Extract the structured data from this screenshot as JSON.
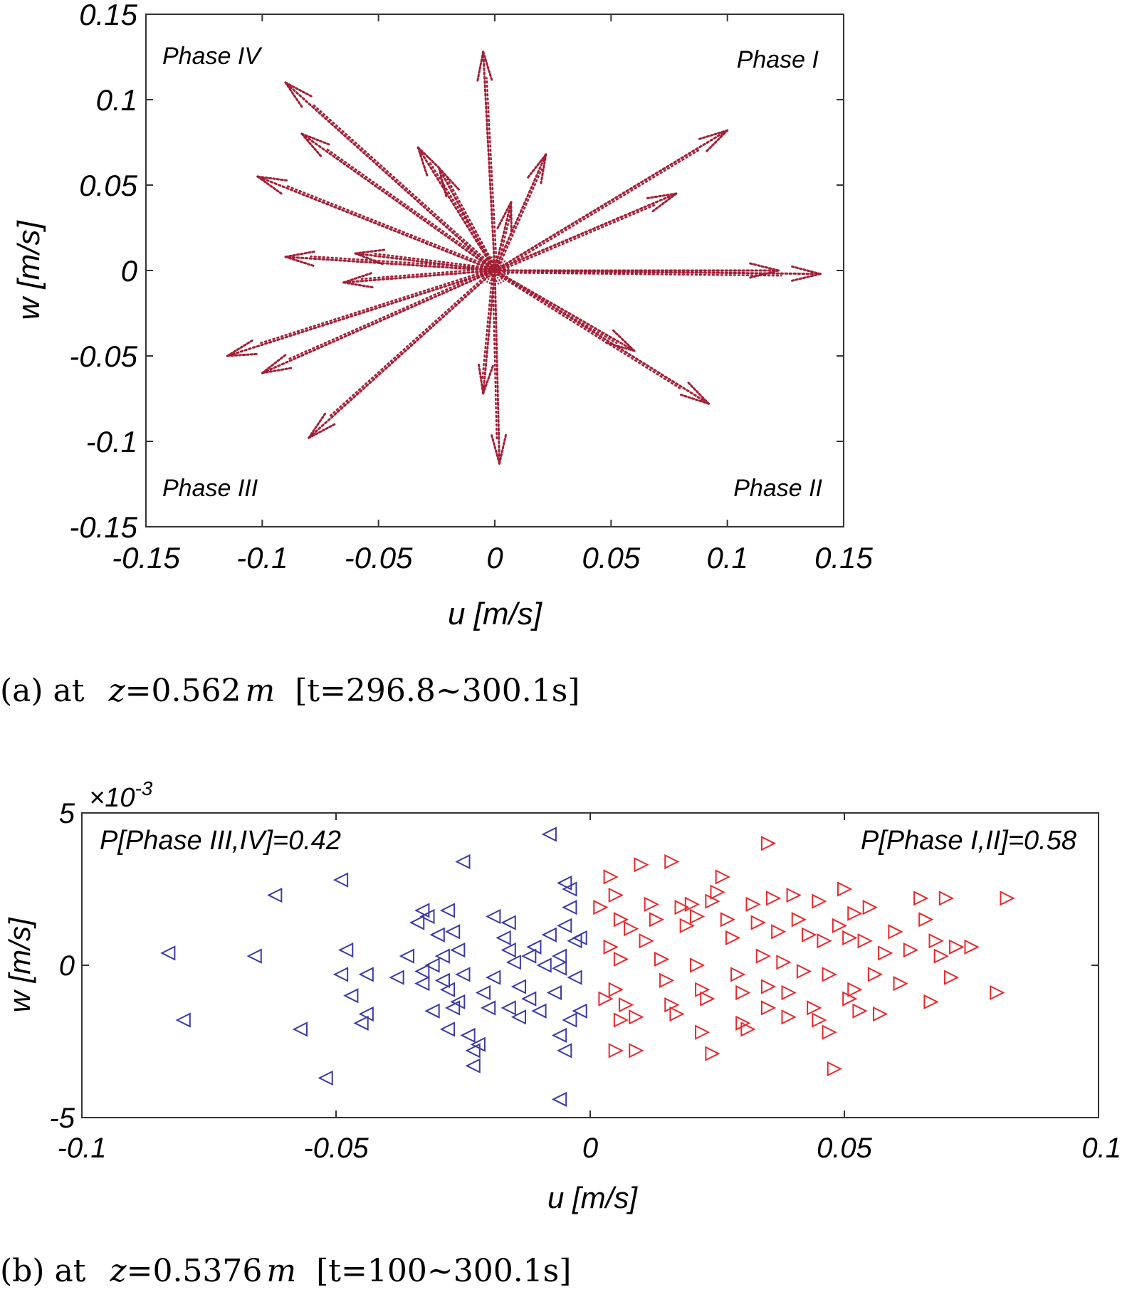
{
  "chart_data": [
    {
      "type": "scatter",
      "panel": "a",
      "title": "",
      "xlabel": "u [m/s]",
      "ylabel": "w [m/s]",
      "xlim": [
        -0.15,
        0.15
      ],
      "ylim": [
        -0.15,
        0.15
      ],
      "xticks": [
        -0.15,
        -0.1,
        -0.05,
        0,
        0.05,
        0.1,
        0.15
      ],
      "yticks": [
        -0.15,
        -0.1,
        -0.05,
        0,
        0.05,
        0.1,
        0.15
      ],
      "xtick_labels": [
        "-0.15",
        "-0.1",
        "-0.05",
        "0",
        "0.05",
        "0.1",
        "0.15"
      ],
      "ytick_labels": [
        "-0.15",
        "-0.1",
        "-0.05",
        "0",
        "0.05",
        "0.1",
        "0.15"
      ],
      "color": "#a31e35",
      "series_description": "dotted velocity trajectories radiating from the origin",
      "ray_endpoints": [
        [
          -0.005,
          0.128
        ],
        [
          0.022,
          0.068
        ],
        [
          0.007,
          0.04
        ],
        [
          0.1,
          0.082
        ],
        [
          0.078,
          0.045
        ],
        [
          0.14,
          -0.002
        ],
        [
          0.122,
          0.0
        ],
        [
          0.092,
          -0.078
        ],
        [
          0.06,
          -0.047
        ],
        [
          0.002,
          -0.113
        ],
        [
          -0.005,
          -0.072
        ],
        [
          -0.08,
          -0.098
        ],
        [
          -0.1,
          -0.06
        ],
        [
          -0.115,
          -0.05
        ],
        [
          -0.09,
          0.11
        ],
        [
          -0.083,
          0.08
        ],
        [
          -0.102,
          0.055
        ],
        [
          -0.09,
          0.008
        ],
        [
          -0.06,
          0.01
        ],
        [
          -0.065,
          -0.007
        ],
        [
          -0.033,
          0.072
        ],
        [
          -0.024,
          0.06
        ]
      ],
      "annotations": {
        "top_left": "Phase IV",
        "top_right": "Phase I",
        "bottom_left": "Phase III",
        "bottom_right": "Phase II"
      }
    },
    {
      "type": "scatter",
      "panel": "b",
      "title": "",
      "xlabel": "u [m/s]",
      "ylabel": "w [m/s]",
      "xlim": [
        -0.1,
        0.1
      ],
      "ylim": [
        -5,
        5
      ],
      "y_scale_label": "×10",
      "y_scale_exponent": "-3",
      "xticks": [
        -0.1,
        -0.05,
        0,
        0.05,
        0.1
      ],
      "yticks": [
        -5,
        0,
        5
      ],
      "xtick_labels": [
        "-0.1",
        "-0.05",
        "0",
        "0.05",
        "0.1"
      ],
      "ytick_labels": [
        "-5",
        "0",
        "5"
      ],
      "series": [
        {
          "name": "Phase III,IV",
          "marker": "triangle-left",
          "color": "#3a3aa8",
          "points": [
            [
              -0.083,
              0.4
            ],
            [
              -0.08,
              -1.8
            ],
            [
              -0.066,
              0.3
            ],
            [
              -0.062,
              2.3
            ],
            [
              -0.057,
              -2.1
            ],
            [
              -0.052,
              -3.7
            ],
            [
              -0.049,
              2.8
            ],
            [
              -0.048,
              0.5
            ],
            [
              -0.049,
              -0.3
            ],
            [
              -0.047,
              -1.0
            ],
            [
              -0.044,
              -0.3
            ],
            [
              -0.044,
              -1.6
            ],
            [
              -0.045,
              -1.9
            ],
            [
              -0.038,
              -0.4
            ],
            [
              -0.036,
              0.3
            ],
            [
              -0.034,
              1.4
            ],
            [
              -0.033,
              1.8
            ],
            [
              -0.032,
              1.6
            ],
            [
              -0.031,
              0.0
            ],
            [
              -0.033,
              -0.2
            ],
            [
              -0.033,
              -0.6
            ],
            [
              -0.031,
              -1.5
            ],
            [
              -0.03,
              1.0
            ],
            [
              -0.029,
              0.3
            ],
            [
              -0.029,
              -0.5
            ],
            [
              -0.028,
              -0.8
            ],
            [
              -0.027,
              -1.4
            ],
            [
              -0.026,
              -1.2
            ],
            [
              -0.028,
              -2.1
            ],
            [
              -0.028,
              1.8
            ],
            [
              -0.027,
              1.1
            ],
            [
              -0.026,
              0.5
            ],
            [
              -0.025,
              -0.3
            ],
            [
              -0.025,
              3.4
            ],
            [
              -0.024,
              -2.3
            ],
            [
              -0.023,
              -2.8
            ],
            [
              -0.023,
              -3.3
            ],
            [
              -0.022,
              -2.6
            ],
            [
              -0.021,
              -0.9
            ],
            [
              -0.02,
              -1.4
            ],
            [
              -0.019,
              -0.4
            ],
            [
              -0.019,
              1.6
            ],
            [
              -0.017,
              0.9
            ],
            [
              -0.016,
              1.4
            ],
            [
              -0.016,
              0.5
            ],
            [
              -0.015,
              0.1
            ],
            [
              -0.016,
              -1.4
            ],
            [
              -0.014,
              -1.7
            ],
            [
              -0.014,
              -0.7
            ],
            [
              -0.012,
              0.3
            ],
            [
              -0.012,
              -1.1
            ],
            [
              -0.011,
              0.6
            ],
            [
              -0.01,
              -1.5
            ],
            [
              -0.009,
              0.0
            ],
            [
              -0.008,
              1.0
            ],
            [
              -0.007,
              -0.9
            ],
            [
              -0.006,
              0.3
            ],
            [
              -0.006,
              -2.3
            ],
            [
              -0.005,
              1.3
            ],
            [
              -0.005,
              -2.8
            ],
            [
              -0.004,
              2.5
            ],
            [
              -0.004,
              1.9
            ],
            [
              -0.003,
              0.8
            ],
            [
              -0.003,
              -0.4
            ],
            [
              -0.004,
              -1.8
            ],
            [
              -0.002,
              -1.5
            ],
            [
              -0.002,
              0.9
            ],
            [
              -0.006,
              -4.4
            ],
            [
              -0.008,
              4.3
            ],
            [
              -0.005,
              2.7
            ],
            [
              -0.006,
              -0.1
            ]
          ]
        },
        {
          "name": "Phase I,II",
          "marker": "triangle-right",
          "color": "#e8292c",
          "points": [
            [
              0.004,
              2.9
            ],
            [
              0.005,
              2.3
            ],
            [
              0.006,
              1.5
            ],
            [
              0.008,
              1.2
            ],
            [
              0.004,
              0.6
            ],
            [
              0.006,
              0.2
            ],
            [
              0.005,
              -0.8
            ],
            [
              0.007,
              -1.3
            ],
            [
              0.006,
              -1.8
            ],
            [
              0.005,
              -2.8
            ],
            [
              0.009,
              -2.8
            ],
            [
              0.01,
              3.3
            ],
            [
              0.012,
              2.0
            ],
            [
              0.013,
              1.5
            ],
            [
              0.014,
              0.2
            ],
            [
              0.015,
              -0.5
            ],
            [
              0.016,
              -1.3
            ],
            [
              0.017,
              -1.6
            ],
            [
              0.018,
              1.9
            ],
            [
              0.019,
              1.3
            ],
            [
              0.02,
              2.0
            ],
            [
              0.021,
              1.6
            ],
            [
              0.022,
              -0.8
            ],
            [
              0.023,
              -1.1
            ],
            [
              0.022,
              -2.2
            ],
            [
              0.024,
              -2.9
            ],
            [
              0.025,
              2.4
            ],
            [
              0.026,
              2.9
            ],
            [
              0.027,
              1.5
            ],
            [
              0.028,
              0.9
            ],
            [
              0.029,
              -0.3
            ],
            [
              0.03,
              -0.9
            ],
            [
              0.03,
              -1.9
            ],
            [
              0.031,
              -2.1
            ],
            [
              0.032,
              2.0
            ],
            [
              0.033,
              1.4
            ],
            [
              0.034,
              0.3
            ],
            [
              0.035,
              -0.7
            ],
            [
              0.035,
              -1.4
            ],
            [
              0.036,
              2.2
            ],
            [
              0.037,
              1.1
            ],
            [
              0.038,
              0.1
            ],
            [
              0.039,
              -0.9
            ],
            [
              0.039,
              -1.7
            ],
            [
              0.04,
              2.3
            ],
            [
              0.041,
              1.5
            ],
            [
              0.042,
              -0.2
            ],
            [
              0.043,
              1.0
            ],
            [
              0.044,
              -1.4
            ],
            [
              0.045,
              -1.8
            ],
            [
              0.045,
              2.1
            ],
            [
              0.046,
              0.8
            ],
            [
              0.047,
              -0.3
            ],
            [
              0.047,
              -2.2
            ],
            [
              0.048,
              -3.4
            ],
            [
              0.049,
              1.3
            ],
            [
              0.05,
              2.5
            ],
            [
              0.051,
              0.9
            ],
            [
              0.051,
              -1.1
            ],
            [
              0.052,
              -0.8
            ],
            [
              0.052,
              1.7
            ],
            [
              0.053,
              -1.5
            ],
            [
              0.054,
              0.8
            ],
            [
              0.055,
              1.9
            ],
            [
              0.056,
              -0.3
            ],
            [
              0.057,
              -1.6
            ],
            [
              0.058,
              0.4
            ],
            [
              0.06,
              1.1
            ],
            [
              0.061,
              -0.6
            ],
            [
              0.063,
              0.5
            ],
            [
              0.065,
              2.2
            ],
            [
              0.066,
              1.5
            ],
            [
              0.067,
              -1.2
            ],
            [
              0.068,
              0.8
            ],
            [
              0.069,
              0.3
            ],
            [
              0.071,
              -0.4
            ],
            [
              0.07,
              2.2
            ],
            [
              0.072,
              0.6
            ],
            [
              0.075,
              0.6
            ],
            [
              0.08,
              -0.9
            ],
            [
              0.082,
              2.2
            ],
            [
              0.035,
              4.0
            ],
            [
              0.016,
              3.4
            ],
            [
              0.021,
              0.0
            ],
            [
              0.024,
              2.1
            ],
            [
              0.002,
              1.9
            ],
            [
              0.003,
              -1.1
            ],
            [
              0.009,
              -1.7
            ],
            [
              0.011,
              0.8
            ]
          ]
        }
      ],
      "annotations": {
        "left": "P[Phase III,IV]=0.42",
        "right": "P[Phase I,II]=0.58"
      }
    }
  ],
  "captions": {
    "a": {
      "prefix": "(a) at ",
      "var": "z",
      "eq": "=0.562",
      "unit": "m",
      "range": "[t=296.8~300.1s]"
    },
    "b": {
      "prefix": "(b) at ",
      "var": "z",
      "eq": "=0.5376",
      "unit": "m",
      "range": "[t=100~300.1s]"
    }
  }
}
